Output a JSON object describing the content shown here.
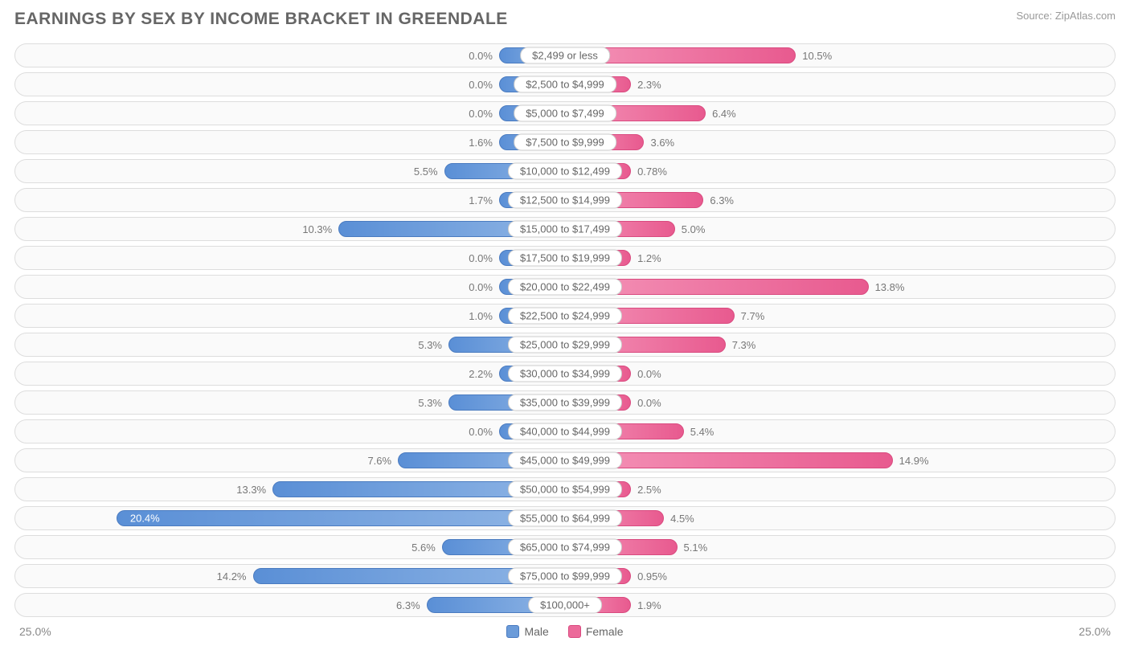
{
  "title": "EARNINGS BY SEX BY INCOME BRACKET IN GREENDALE",
  "source": "Source: ZipAtlas.com",
  "chart": {
    "type": "diverging-bar",
    "axis_max": 25.0,
    "axis_label_left": "25.0%",
    "axis_label_right": "25.0%",
    "male_color_start": "#5a8fd6",
    "male_color_end": "#8fb5e5",
    "male_border": "#4a7bc0",
    "female_color_start": "#f494b8",
    "female_color_end": "#e85a8f",
    "female_border": "#d94a7f",
    "row_bg": "#fafafa",
    "row_border": "#dddddd",
    "text_color": "#777777",
    "inside_threshold": 17.0,
    "min_bar_pct": 3.0,
    "rows": [
      {
        "category": "$2,499 or less",
        "male": 0.0,
        "female": 10.5,
        "male_label": "0.0%",
        "female_label": "10.5%"
      },
      {
        "category": "$2,500 to $4,999",
        "male": 0.0,
        "female": 2.3,
        "male_label": "0.0%",
        "female_label": "2.3%"
      },
      {
        "category": "$5,000 to $7,499",
        "male": 0.0,
        "female": 6.4,
        "male_label": "0.0%",
        "female_label": "6.4%"
      },
      {
        "category": "$7,500 to $9,999",
        "male": 1.6,
        "female": 3.6,
        "male_label": "1.6%",
        "female_label": "3.6%"
      },
      {
        "category": "$10,000 to $12,499",
        "male": 5.5,
        "female": 0.78,
        "male_label": "5.5%",
        "female_label": "0.78%"
      },
      {
        "category": "$12,500 to $14,999",
        "male": 1.7,
        "female": 6.3,
        "male_label": "1.7%",
        "female_label": "6.3%"
      },
      {
        "category": "$15,000 to $17,499",
        "male": 10.3,
        "female": 5.0,
        "male_label": "10.3%",
        "female_label": "5.0%"
      },
      {
        "category": "$17,500 to $19,999",
        "male": 0.0,
        "female": 1.2,
        "male_label": "0.0%",
        "female_label": "1.2%"
      },
      {
        "category": "$20,000 to $22,499",
        "male": 0.0,
        "female": 13.8,
        "male_label": "0.0%",
        "female_label": "13.8%"
      },
      {
        "category": "$22,500 to $24,999",
        "male": 1.0,
        "female": 7.7,
        "male_label": "1.0%",
        "female_label": "7.7%"
      },
      {
        "category": "$25,000 to $29,999",
        "male": 5.3,
        "female": 7.3,
        "male_label": "5.3%",
        "female_label": "7.3%"
      },
      {
        "category": "$30,000 to $34,999",
        "male": 2.2,
        "female": 0.0,
        "male_label": "2.2%",
        "female_label": "0.0%"
      },
      {
        "category": "$35,000 to $39,999",
        "male": 5.3,
        "female": 0.0,
        "male_label": "5.3%",
        "female_label": "0.0%"
      },
      {
        "category": "$40,000 to $44,999",
        "male": 0.0,
        "female": 5.4,
        "male_label": "0.0%",
        "female_label": "5.4%"
      },
      {
        "category": "$45,000 to $49,999",
        "male": 7.6,
        "female": 14.9,
        "male_label": "7.6%",
        "female_label": "14.9%"
      },
      {
        "category": "$50,000 to $54,999",
        "male": 13.3,
        "female": 2.5,
        "male_label": "13.3%",
        "female_label": "2.5%"
      },
      {
        "category": "$55,000 to $64,999",
        "male": 20.4,
        "female": 4.5,
        "male_label": "20.4%",
        "female_label": "4.5%"
      },
      {
        "category": "$65,000 to $74,999",
        "male": 5.6,
        "female": 5.1,
        "male_label": "5.6%",
        "female_label": "5.1%"
      },
      {
        "category": "$75,000 to $99,999",
        "male": 14.2,
        "female": 0.95,
        "male_label": "14.2%",
        "female_label": "0.95%"
      },
      {
        "category": "$100,000+",
        "male": 6.3,
        "female": 1.9,
        "male_label": "6.3%",
        "female_label": "1.9%"
      }
    ]
  },
  "legend": {
    "male": "Male",
    "female": "Female"
  }
}
